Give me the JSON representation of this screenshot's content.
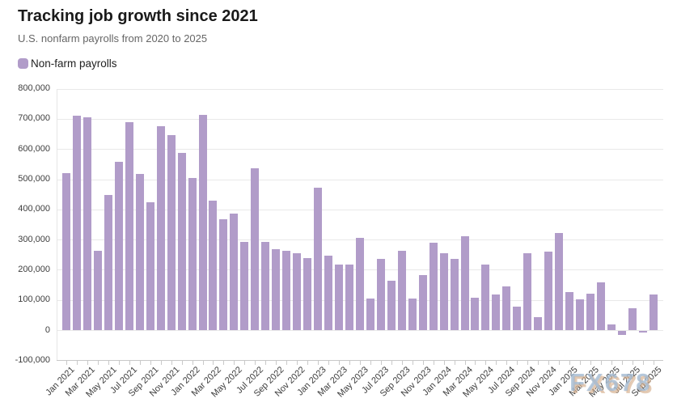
{
  "header": {
    "title": "Tracking job growth since 2021",
    "subtitle": "U.S. nonfarm payrolls from 2020 to 2025"
  },
  "legend": {
    "label": "Non-farm payrolls",
    "swatch_color": "#b19cc9"
  },
  "watermark": {
    "text": "FX678"
  },
  "chart_data": {
    "type": "bar",
    "title": "Tracking job growth since 2021",
    "subtitle": "U.S. nonfarm payrolls from 2020 to 2025",
    "series_name": "Non-farm payrolls",
    "bar_color": "#b19cc9",
    "xlabel": "",
    "ylabel": "",
    "ylim": [
      -100000,
      800000
    ],
    "ytick_step": 100000,
    "grid": true,
    "legend_position": "top-left",
    "x_label_every": 2,
    "categories": [
      "Jan 2021",
      "Feb 2021",
      "Mar 2021",
      "Apr 2021",
      "May 2021",
      "Jun 2021",
      "Jul 2021",
      "Aug 2021",
      "Sep 2021",
      "Oct 2021",
      "Nov 2021",
      "Dec 2021",
      "Jan 2022",
      "Feb 2022",
      "Mar 2022",
      "Apr 2022",
      "May 2022",
      "Jun 2022",
      "Jul 2022",
      "Aug 2022",
      "Sep 2022",
      "Oct 2022",
      "Nov 2022",
      "Dec 2022",
      "Jan 2023",
      "Feb 2023",
      "Mar 2023",
      "Apr 2023",
      "May 2023",
      "Jun 2023",
      "Jul 2023",
      "Aug 2023",
      "Sep 2023",
      "Oct 2023",
      "Nov 2023",
      "Dec 2023",
      "Jan 2024",
      "Feb 2024",
      "Mar 2024",
      "Apr 2024",
      "May 2024",
      "Jun 2024",
      "Jul 2024",
      "Aug 2024",
      "Sep 2024",
      "Oct 2024",
      "Nov 2024",
      "Dec 2024",
      "Jan 2025",
      "Feb 2025",
      "Mar 2025",
      "Apr 2025",
      "May 2025",
      "Jun 2025",
      "Jul 2025",
      "Aug 2025",
      "Sep 2025"
    ],
    "values": [
      520000,
      710000,
      704000,
      263000,
      447000,
      557000,
      689000,
      517000,
      424000,
      677000,
      647000,
      588000,
      504000,
      714000,
      430000,
      368000,
      386000,
      293000,
      537000,
      292000,
      269000,
      263000,
      256000,
      239000,
      472000,
      248000,
      217000,
      217000,
      306000,
      105000,
      236000,
      165000,
      262000,
      105000,
      182000,
      290000,
      256000,
      236000,
      310000,
      108000,
      216000,
      118000,
      144000,
      78000,
      255000,
      43000,
      261000,
      323000,
      125000,
      102000,
      120000,
      158000,
      19000,
      -13000,
      72000,
      -4000,
      119000
    ]
  }
}
